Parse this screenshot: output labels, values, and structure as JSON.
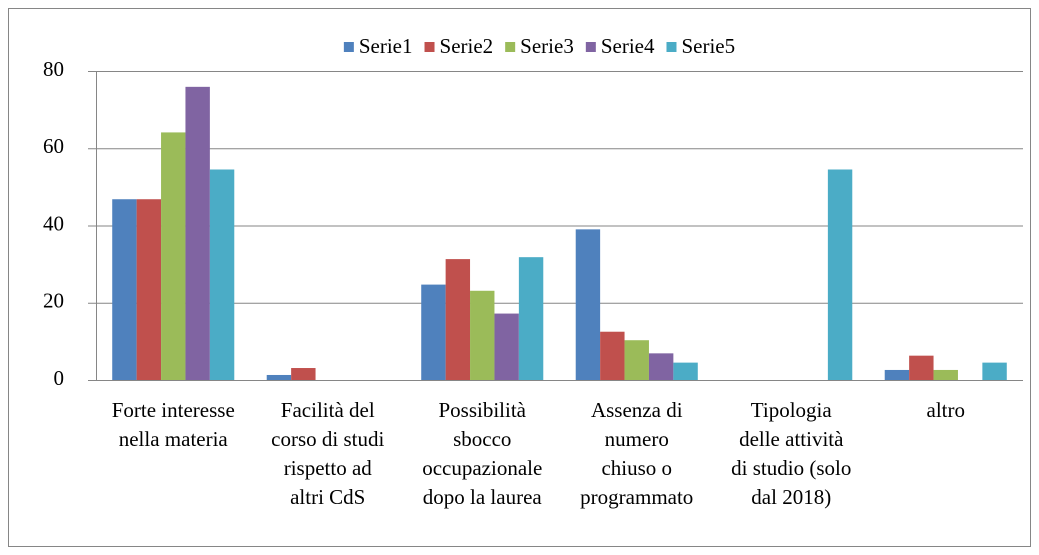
{
  "chart_data": {
    "type": "bar",
    "categories": [
      [
        "Forte interesse",
        "nella materia"
      ],
      [
        "Facilità del",
        "corso di studi",
        "rispetto ad",
        "altri CdS"
      ],
      [
        "Possibilità",
        "sbocco",
        "occupazionale",
        "dopo la laurea"
      ],
      [
        "Assenza di",
        "numero",
        "chiuso o",
        "programmato"
      ],
      [
        "Tipologia",
        "delle attività",
        "di studio (solo",
        "dal 2018)"
      ],
      [
        "altro"
      ]
    ],
    "series": [
      {
        "name": "Serie1",
        "color": "#4f81bd",
        "values": [
          46.8,
          1.3,
          24.7,
          39,
          0,
          2.6
        ]
      },
      {
        "name": "Serie2",
        "color": "#c0504d",
        "values": [
          46.8,
          3.1,
          31.3,
          12.5,
          0,
          6.3
        ]
      },
      {
        "name": "Serie3",
        "color": "#9bbb59",
        "values": [
          64.1,
          0,
          23.1,
          10.3,
          0,
          2.6
        ]
      },
      {
        "name": "Serie4",
        "color": "#8064a2",
        "values": [
          75.9,
          0,
          17.2,
          6.9,
          0,
          0
        ]
      },
      {
        "name": "Serie5",
        "color": "#4bacc6",
        "values": [
          54.5,
          0,
          31.8,
          4.5,
          54.5,
          4.5
        ]
      }
    ],
    "ylim": [
      0,
      80
    ],
    "yticks": [
      0,
      20,
      40,
      60,
      80
    ],
    "grid": true,
    "legend": "top"
  }
}
